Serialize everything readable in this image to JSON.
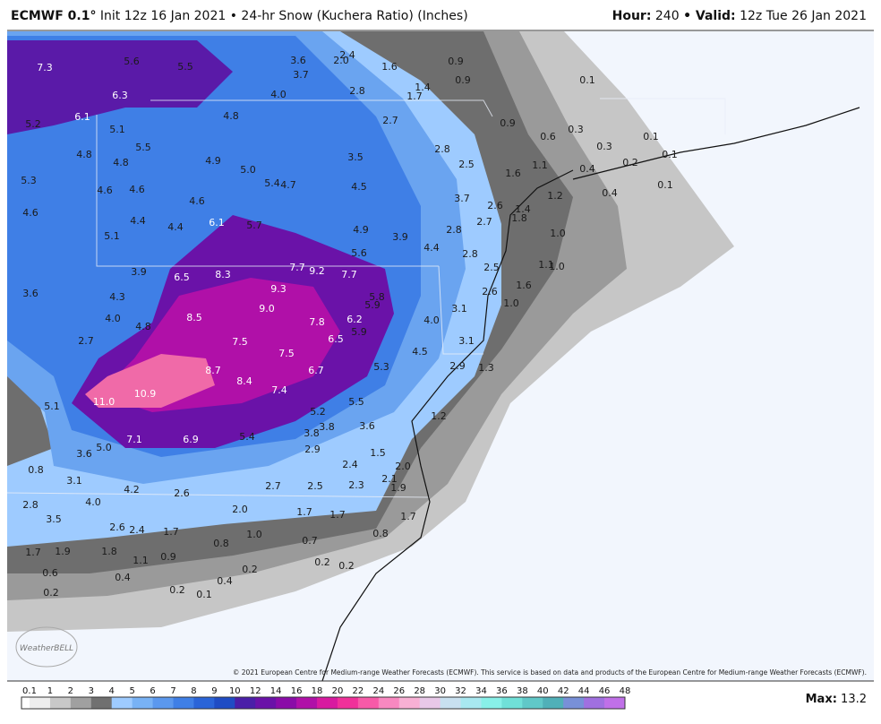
{
  "header": {
    "title": "ECMWF 0.1°",
    "subtitle": "Init 12z 16 Jan 2021 • 24-hr Snow (Kuchera Ratio) (Inches)",
    "hour_label": "Hour:",
    "hour": "240",
    "valid_label": "• Valid:",
    "valid": "12z Tue 26 Jan 2021"
  },
  "map_labels": [
    "7.3",
    "5.6",
    "5.5",
    "6.3",
    "6.1",
    "5.2",
    "5.1",
    "4.8",
    "3.6",
    "3.7",
    "4.0",
    "2.0",
    "2.4",
    "1.6",
    "2.8",
    "0.9",
    "0.9",
    "1.4",
    "1.7",
    "2.7",
    "0.9",
    "0.1",
    "0.6",
    "0.3",
    "0.3",
    "0.1",
    "0.1",
    "0.2",
    "0.4",
    "0.4",
    "0.1",
    "5.5",
    "4.8",
    "4.8",
    "4.9",
    "5.0",
    "5.3",
    "4.6",
    "4.6",
    "5.4",
    "4.7",
    "3.5",
    "2.8",
    "2.5",
    "1.6",
    "1.1",
    "1.2",
    "4.5",
    "3.7",
    "4.6",
    "4.6",
    "4.4",
    "4.4",
    "6.1",
    "5.7",
    "2.6",
    "1.4",
    "1.8",
    "2.7",
    "2.8",
    "4.9",
    "3.9",
    "4.4",
    "1.0",
    "5.1",
    "5.6",
    "2.8",
    "3.9",
    "6.5",
    "8.3",
    "7.7",
    "9.2",
    "7.7",
    "2.5",
    "1.1",
    "1.0",
    "1.6",
    "3.6",
    "4.3",
    "9.3",
    "5.8",
    "5.9",
    "2.6",
    "1.0",
    "9.0",
    "3.1",
    "4.0",
    "8.5",
    "7.8",
    "6.2",
    "5.9",
    "4.0",
    "4.8",
    "6.5",
    "2.7",
    "7.5",
    "3.1",
    "7.5",
    "4.5",
    "8.7",
    "6.7",
    "5.3",
    "2.9",
    "1.3",
    "8.4",
    "7.4",
    "11.0",
    "10.9",
    "5.5",
    "5.1",
    "5.2",
    "3.8",
    "3.6",
    "3.8",
    "1.2",
    "7.1",
    "6.9",
    "5.4",
    "5.0",
    "3.6",
    "2.9",
    "1.5",
    "2.4",
    "0.8",
    "2.0",
    "2.1",
    "3.1",
    "2.7",
    "2.5",
    "2.3",
    "1.9",
    "4.2",
    "2.6",
    "4.0",
    "2.8",
    "2.0",
    "1.7",
    "1.7",
    "1.7",
    "3.5",
    "2.6",
    "2.4",
    "1.7",
    "1.0",
    "0.8",
    "0.8",
    "0.7",
    "1.7",
    "1.9",
    "1.8",
    "1.1",
    "0.9",
    "0.2",
    "0.2",
    "0.2",
    "0.6",
    "0.4",
    "0.4",
    "0.2",
    "0.2",
    "0.1"
  ],
  "credit": "© 2021 European Centre for Medium-range Weather Forecasts (ECMWF). This service is based on data and products of the European Centre for Medium-range Weather Forecasts (ECMWF).",
  "logo": "WeatherBELL",
  "legend": {
    "labels": [
      "0.1",
      "1",
      "2",
      "3",
      "4",
      "5",
      "6",
      "7",
      "8",
      "9",
      "10",
      "12",
      "14",
      "16",
      "18",
      "20",
      "22",
      "24",
      "26",
      "28",
      "30",
      "32",
      "34",
      "36",
      "38",
      "40",
      "42",
      "44",
      "46",
      "48"
    ],
    "max_label": "Max:",
    "max": "13.2"
  }
}
